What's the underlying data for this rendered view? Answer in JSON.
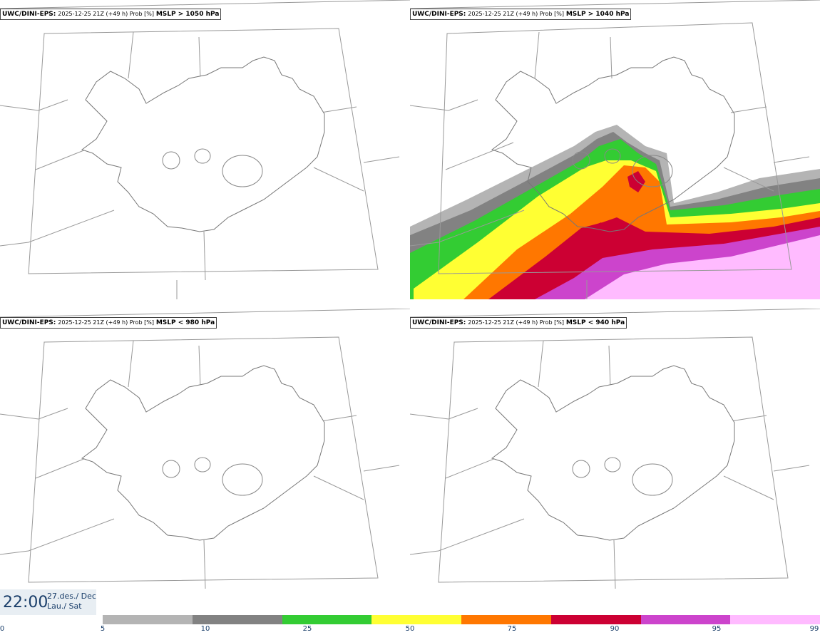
{
  "panels": [
    {
      "model": "UWC/DINI-EPS:",
      "meta": "2025-12-25 21Z (+49 h) Prob [%]",
      "param": "MSLP > 1050 hPa"
    },
    {
      "model": "UWC/DINI-EPS:",
      "meta": "2025-12-25 21Z (+49 h) Prob [%]",
      "param": "MSLP > 1040 hPa"
    },
    {
      "model": "UWC/DINI-EPS:",
      "meta": "2025-12-25 21Z (+49 h) Prob [%]",
      "param": "MSLP < 980 hPa"
    },
    {
      "model": "UWC/DINI-EPS:",
      "meta": "2025-12-25 21Z (+49 h) Prob [%]",
      "param": "MSLP < 940 hPa"
    }
  ],
  "valid_time": {
    "time": "22:00",
    "date_line1": "27.des./ Dec",
    "date_line2": "Lau./ Sat"
  },
  "legend": {
    "ticks": [
      "0",
      "5",
      "10",
      "25",
      "50",
      "75",
      "90",
      "95",
      "99"
    ],
    "colors": [
      "#b4b4b4",
      "#828282",
      "#33cc33",
      "#ffff33",
      "#ff7700",
      "#cc0033",
      "#cc44cc",
      "#ffbbff"
    ]
  }
}
